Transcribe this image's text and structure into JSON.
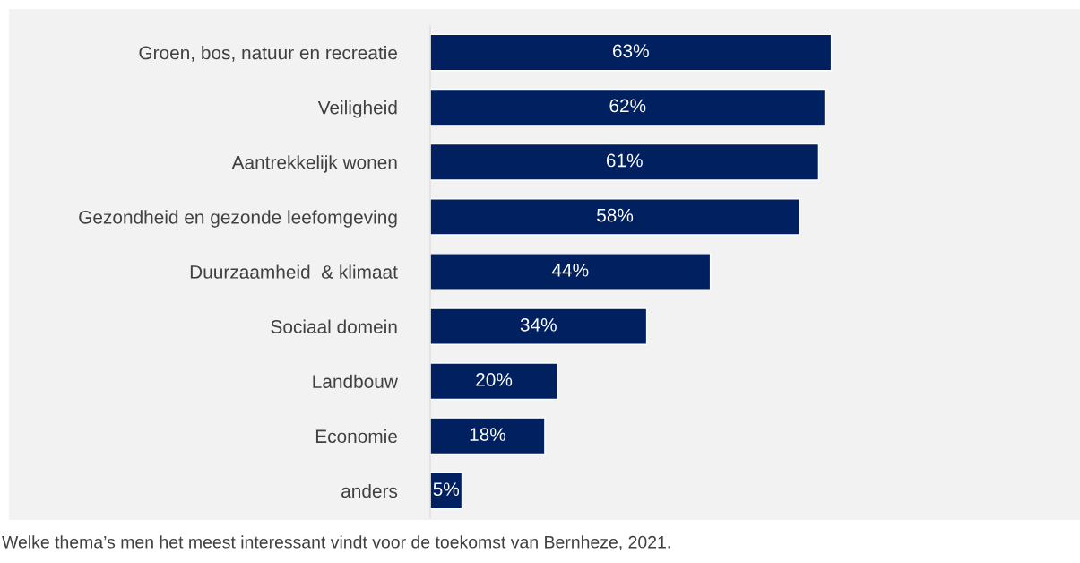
{
  "chart_data": {
    "type": "bar",
    "orientation": "horizontal",
    "categories": [
      "Groen, bos, natuur en recreatie",
      "Veiligheid",
      "Aantrekkelijk wonen",
      "Gezondheid en gezonde leefomgeving",
      "Duurzaamheid  & klimaat",
      "Sociaal domein",
      "Landbouw",
      "Economie",
      "anders"
    ],
    "values": [
      63,
      62,
      61,
      58,
      44,
      34,
      20,
      18,
      5
    ],
    "value_labels": [
      "63%",
      "62%",
      "61%",
      "58%",
      "44%",
      "34%",
      "20%",
      "18%",
      "5%"
    ],
    "color": "#002060",
    "grid": false,
    "legend": false,
    "annotations": [
      "Welke thema’s men het meest interessant vindt voor de toekomst van Bernheze, 2021."
    ]
  }
}
